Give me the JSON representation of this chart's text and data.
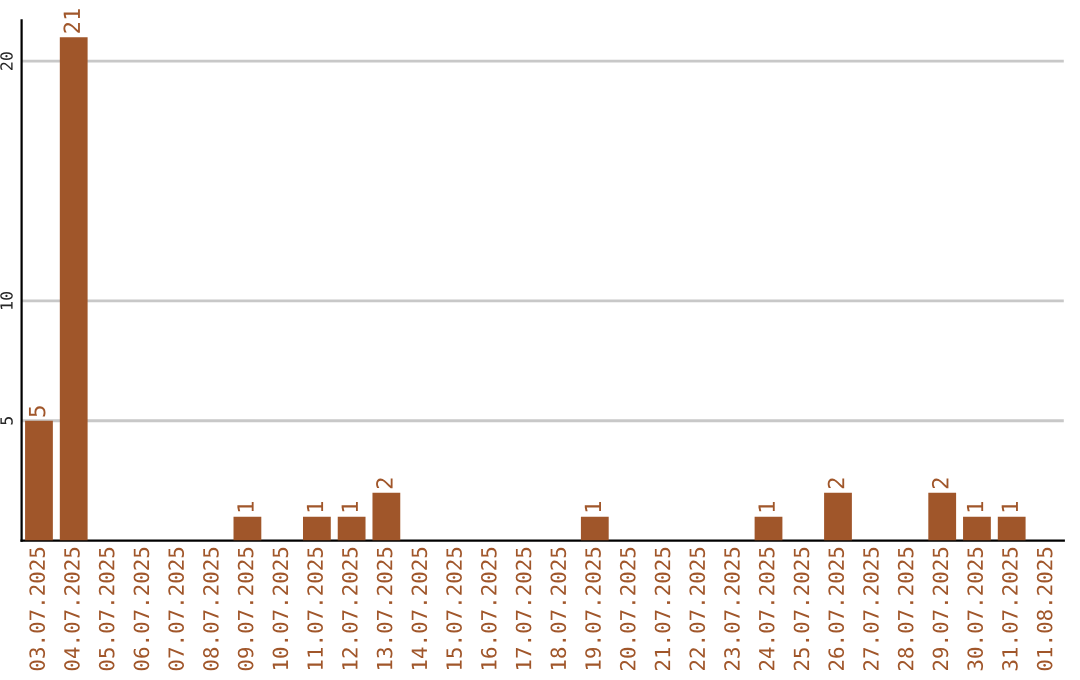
{
  "chart_data": {
    "type": "bar",
    "categories": [
      "03.07.2025",
      "04.07.2025",
      "05.07.2025",
      "06.07.2025",
      "07.07.2025",
      "08.07.2025",
      "09.07.2025",
      "10.07.2025",
      "11.07.2025",
      "12.07.2025",
      "13.07.2025",
      "14.07.2025",
      "15.07.2025",
      "16.07.2025",
      "17.07.2025",
      "18.07.2025",
      "19.07.2025",
      "20.07.2025",
      "21.07.2025",
      "22.07.2025",
      "23.07.2025",
      "24.07.2025",
      "25.07.2025",
      "26.07.2025",
      "27.07.2025",
      "28.07.2025",
      "29.07.2025",
      "30.07.2025",
      "31.07.2025",
      "01.08.2025"
    ],
    "values": [
      5,
      21,
      0,
      0,
      0,
      0,
      1,
      0,
      1,
      1,
      2,
      0,
      0,
      0,
      0,
      0,
      1,
      0,
      0,
      0,
      0,
      1,
      0,
      2,
      0,
      0,
      2,
      1,
      1,
      0
    ],
    "value_labels": [
      "5",
      "21",
      null,
      null,
      null,
      null,
      "1",
      null,
      "1",
      "1",
      "2",
      null,
      null,
      null,
      null,
      null,
      "1",
      null,
      null,
      null,
      null,
      "1",
      null,
      "2",
      null,
      null,
      "2",
      "1",
      "1",
      null
    ],
    "color": "#a0562a",
    "ylim": [
      0,
      21.7
    ],
    "yticks": [
      5,
      10,
      20
    ],
    "grid": "y",
    "legend": false
  }
}
